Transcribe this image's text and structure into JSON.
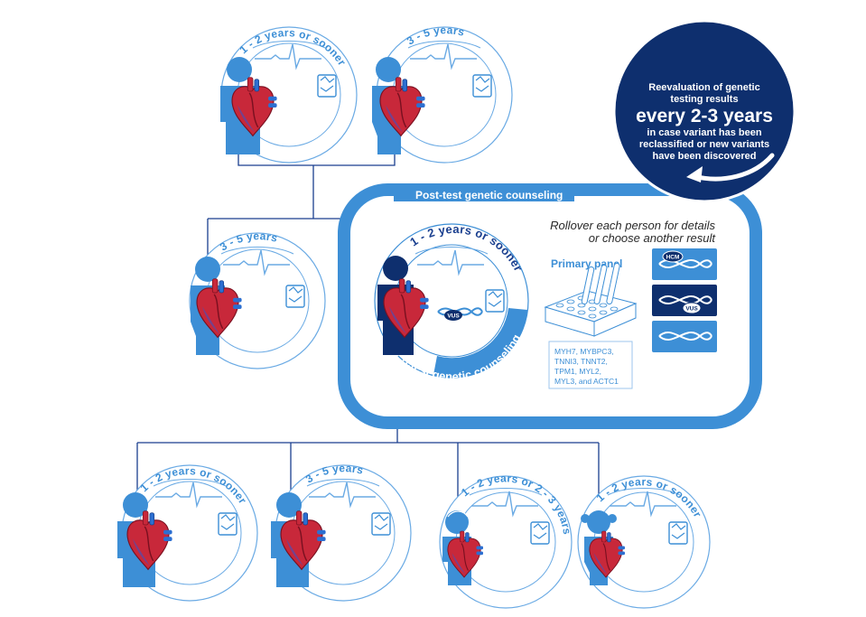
{
  "post_test_label": "Post-test genetic counseling",
  "pretest_label": "Pretest genetic counseling",
  "rollover_text": {
    "line1": "Rollover each person for details",
    "line2": "or choose another result"
  },
  "primary_panel": {
    "title": "Primary panel",
    "genes_lines": [
      "MYH7, MYBPC3,",
      "TNNI3, TNNT2,",
      "TPM1, MYL2,",
      "MYL3, and ACTC1"
    ]
  },
  "result_buttons": [
    {
      "tag": "HCM"
    },
    {
      "tag": "VUS"
    },
    {
      "tag": ""
    }
  ],
  "reevaluation_badge": {
    "line1": "Reevaluation of genetic",
    "line2": "testing results",
    "headline": "every 2-3 years",
    "line4": "in case variant has been",
    "line5": "reclassified or new variants",
    "line6": "have been discovered"
  },
  "people": [
    {
      "id": "grandfather",
      "interval": "1 - 2 years or sooner"
    },
    {
      "id": "grandmother",
      "interval": "3 - 5 years"
    },
    {
      "id": "aunt",
      "interval": "3 - 5 years"
    },
    {
      "id": "proband",
      "interval": "1 - 2 years or sooner",
      "tag": "VUS"
    },
    {
      "id": "child-1",
      "interval": "1 - 2 years or sooner"
    },
    {
      "id": "child-2",
      "interval": "3 - 5 years"
    },
    {
      "id": "child-3",
      "interval": "1 - 2 years or 2 - 3 years"
    },
    {
      "id": "child-4",
      "interval": "1 - 2 years or sooner"
    }
  ],
  "colors": {
    "accent": "#3d8fd6",
    "navy": "#0e2f6e",
    "heart_red": "#c8283a",
    "light_blue": "#9cc6ee"
  }
}
